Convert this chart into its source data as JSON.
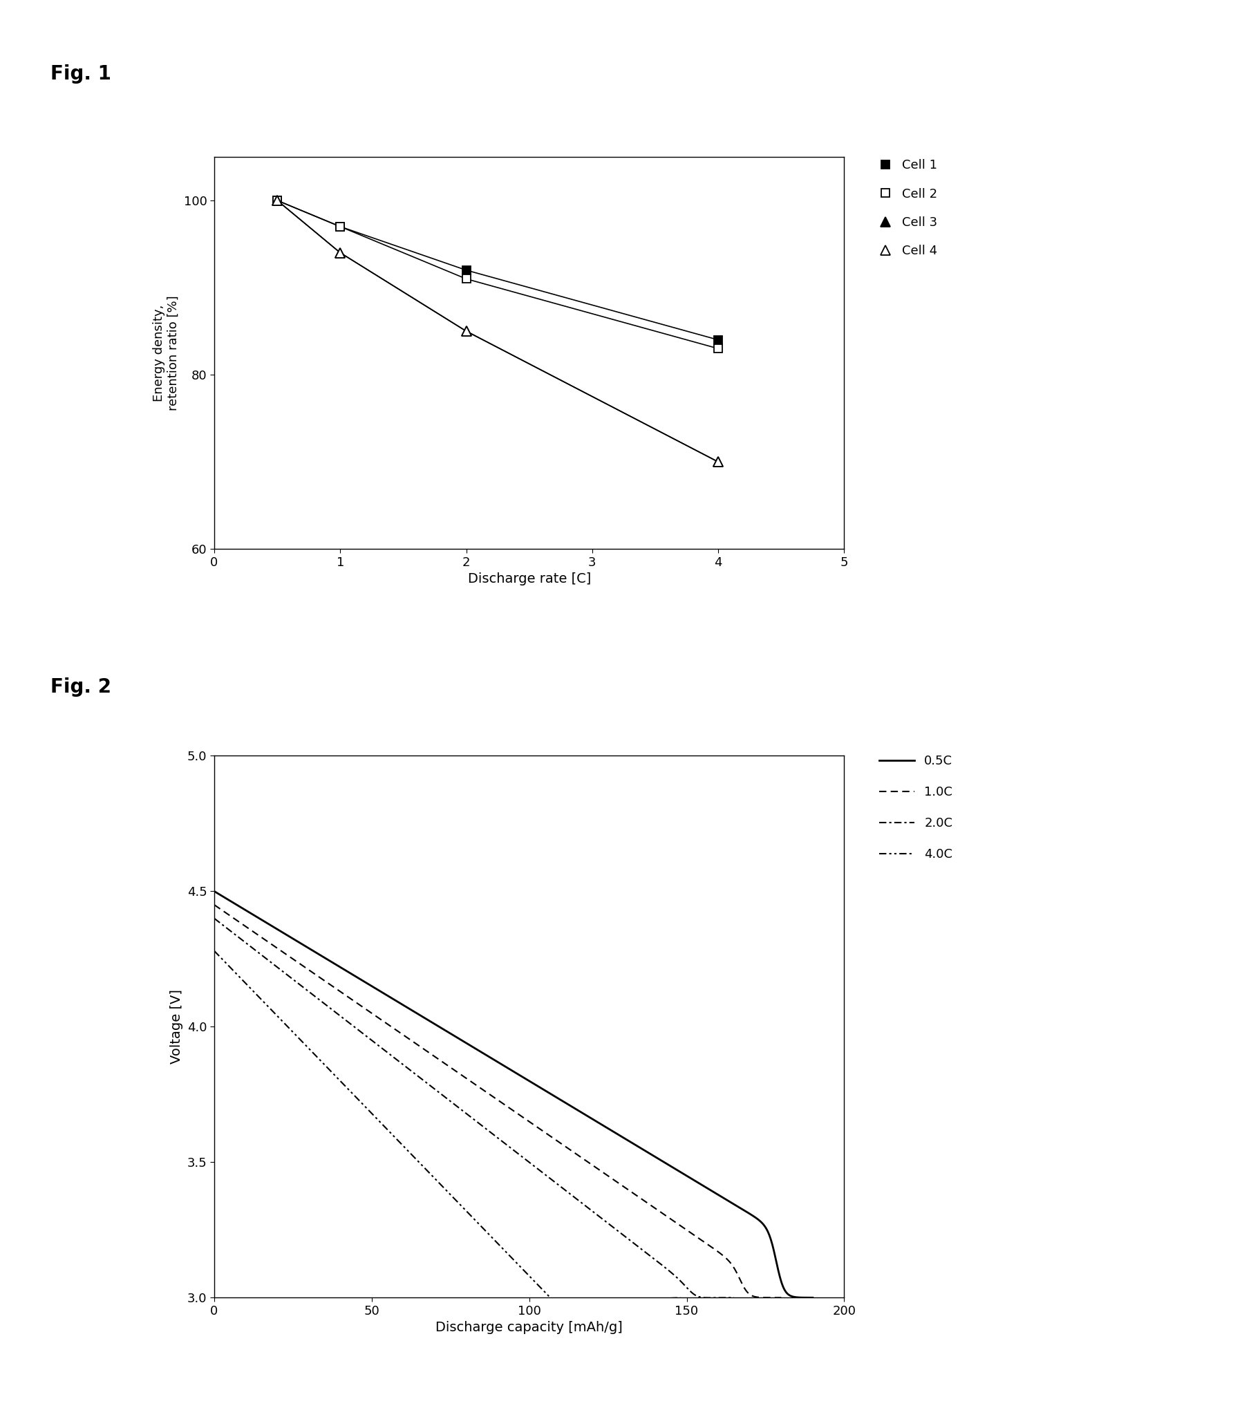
{
  "fig1_title": "Fig. 1",
  "fig2_title": "Fig. 2",
  "fig1": {
    "cell1": {
      "x": [
        0.5,
        1,
        2,
        4
      ],
      "y": [
        100,
        97,
        92,
        84
      ],
      "label": "Cell 1",
      "marker": "s",
      "fill": true
    },
    "cell2": {
      "x": [
        0.5,
        1,
        2,
        4
      ],
      "y": [
        100,
        97,
        91,
        83
      ],
      "label": "Cell 2",
      "marker": "s",
      "fill": false
    },
    "cell3": {
      "x": [
        0.5,
        1,
        2,
        4
      ],
      "y": [
        100,
        94,
        85,
        70
      ],
      "label": "Cell 3",
      "marker": "^",
      "fill": true
    },
    "cell4": {
      "x": [
        0.5,
        1,
        2,
        4
      ],
      "y": [
        100,
        94,
        85,
        70
      ],
      "label": "Cell 4",
      "marker": "^",
      "fill": false
    },
    "xlabel": "Discharge rate [C]",
    "ylabel": "Energy density,\nretention ratio [%]",
    "xlim": [
      0,
      5
    ],
    "ylim": [
      60,
      105
    ],
    "xticks": [
      0,
      1,
      2,
      3,
      4,
      5
    ],
    "yticks": [
      60,
      80,
      100
    ]
  },
  "fig2": {
    "xlabel": "Discharge capacity [mAh/g]",
    "ylabel": "Voltage [V]",
    "xlim": [
      0,
      200
    ],
    "ylim": [
      3.0,
      5.0
    ],
    "xticks": [
      0,
      50,
      100,
      150,
      200
    ],
    "yticks": [
      3.0,
      3.5,
      4.0,
      4.5,
      5.0
    ],
    "curves": {
      "0.5C": {
        "start_v": 4.5,
        "end_cap": 190,
        "slope": 0.007,
        "drop_start": 0.88,
        "drop_steepness": 18
      },
      "1.0C": {
        "start_v": 4.45,
        "end_cap": 180,
        "slope": 0.008,
        "drop_start": 0.86,
        "drop_steepness": 18
      },
      "2.0C": {
        "start_v": 4.4,
        "end_cap": 165,
        "slope": 0.009,
        "drop_start": 0.84,
        "drop_steepness": 16
      },
      "4.0C": {
        "start_v": 4.28,
        "end_cap": 148,
        "slope": 0.012,
        "drop_start": 0.8,
        "drop_steepness": 14
      }
    }
  }
}
